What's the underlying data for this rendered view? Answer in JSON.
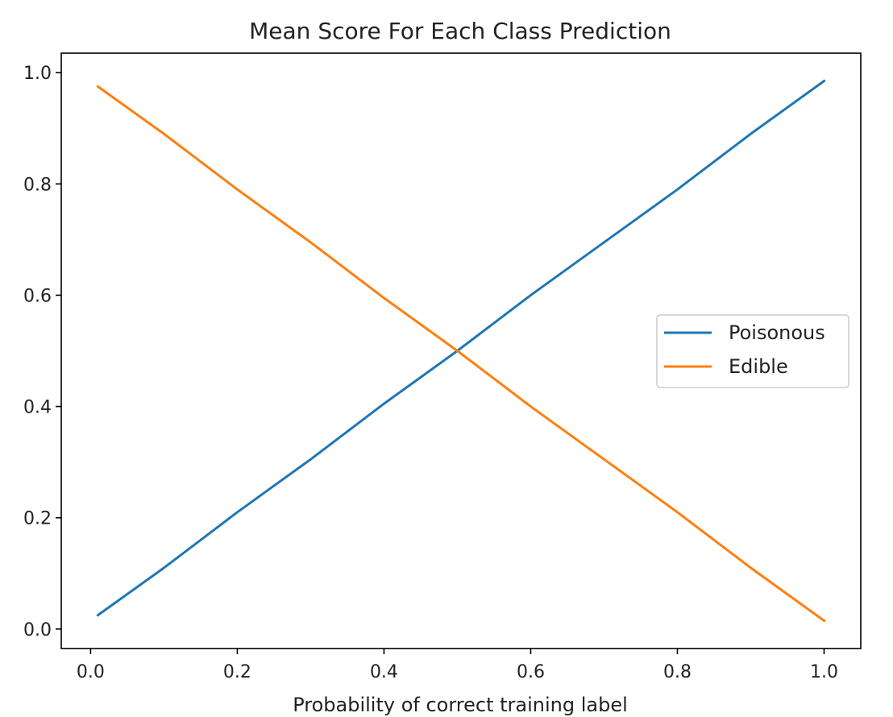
{
  "chart_data": {
    "type": "line",
    "title": "Mean Score For Each Class Prediction",
    "xlabel": "Probability of correct training label",
    "ylabel": "",
    "xlim": [
      -0.04,
      1.05
    ],
    "ylim": [
      -0.035,
      1.035
    ],
    "xticks": [
      0.0,
      0.2,
      0.4,
      0.6,
      0.8,
      1.0
    ],
    "xtick_labels": [
      "0.0",
      "0.2",
      "0.4",
      "0.6",
      "0.8",
      "1.0"
    ],
    "yticks": [
      0.0,
      0.2,
      0.4,
      0.6,
      0.8,
      1.0
    ],
    "ytick_labels": [
      "0.0",
      "0.2",
      "0.4",
      "0.6",
      "0.8",
      "1.0"
    ],
    "grid": false,
    "legend": {
      "position": "center-right"
    },
    "series": [
      {
        "name": "Poisonous",
        "color": "#1f77b4",
        "x": [
          0.01,
          0.1,
          0.2,
          0.3,
          0.4,
          0.5,
          0.6,
          0.7,
          0.8,
          0.9,
          1.0
        ],
        "y": [
          0.025,
          0.11,
          0.21,
          0.305,
          0.405,
          0.5,
          0.6,
          0.695,
          0.79,
          0.89,
          0.985
        ]
      },
      {
        "name": "Edible",
        "color": "#ff7f0e",
        "x": [
          0.01,
          0.1,
          0.2,
          0.3,
          0.4,
          0.5,
          0.6,
          0.7,
          0.8,
          0.9,
          1.0
        ],
        "y": [
          0.975,
          0.89,
          0.79,
          0.695,
          0.595,
          0.5,
          0.4,
          0.305,
          0.21,
          0.11,
          0.015
        ]
      }
    ]
  }
}
